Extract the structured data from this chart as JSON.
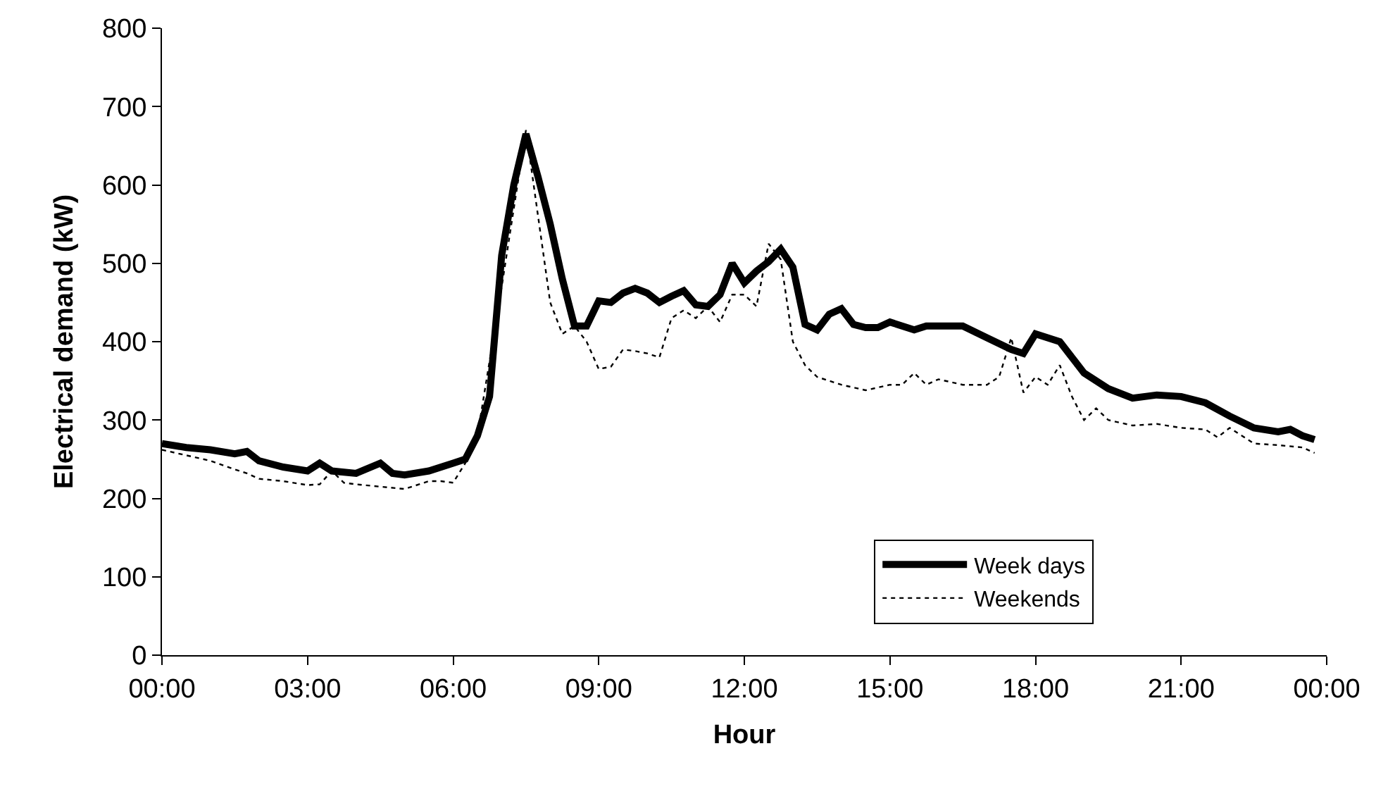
{
  "chart_data": {
    "type": "line",
    "xlabel": "Hour",
    "ylabel": "Electrical demand (kW)",
    "xlim": [
      0,
      24
    ],
    "xticks": [
      {
        "value": 0,
        "label": "00:00"
      },
      {
        "value": 3,
        "label": "03:00"
      },
      {
        "value": 6,
        "label": "06:00"
      },
      {
        "value": 9,
        "label": "09:00"
      },
      {
        "value": 12,
        "label": "12:00"
      },
      {
        "value": 15,
        "label": "15:00"
      },
      {
        "value": 18,
        "label": "18:00"
      },
      {
        "value": 21,
        "label": "21:00"
      },
      {
        "value": 24,
        "label": "00:00"
      }
    ],
    "ylim": [
      0,
      800
    ],
    "yticks": [
      0,
      100,
      200,
      300,
      400,
      500,
      600,
      700,
      800
    ],
    "legend": "bottom right",
    "marker": "none",
    "series": [
      {
        "name": "Week days",
        "color": "#000000",
        "line_style": "solid",
        "x": [
          0,
          0.5,
          1,
          1.5,
          1.75,
          2,
          2.5,
          3,
          3.25,
          3.5,
          4,
          4.5,
          4.75,
          5,
          5.5,
          6,
          6.25,
          6.5,
          6.75,
          7,
          7.25,
          7.5,
          7.75,
          8,
          8.25,
          8.5,
          8.75,
          9,
          9.25,
          9.5,
          9.75,
          10,
          10.25,
          10.5,
          10.75,
          11,
          11.25,
          11.5,
          11.75,
          12,
          12.25,
          12.5,
          12.75,
          13,
          13.25,
          13.5,
          13.75,
          14,
          14.25,
          14.5,
          14.75,
          15,
          15.25,
          15.5,
          15.75,
          16,
          16.5,
          17,
          17.5,
          17.75,
          18,
          18.5,
          19,
          19.5,
          20,
          20.5,
          21,
          21.5,
          22,
          22.5,
          23,
          23.25,
          23.5,
          23.75
        ],
        "values": [
          270,
          265,
          262,
          257,
          260,
          248,
          240,
          235,
          245,
          235,
          232,
          245,
          232,
          230,
          235,
          245,
          250,
          280,
          330,
          510,
          600,
          665,
          610,
          550,
          480,
          420,
          420,
          452,
          450,
          462,
          468,
          462,
          450,
          458,
          465,
          447,
          445,
          460,
          500,
          475,
          490,
          502,
          518,
          495,
          422,
          415,
          435,
          442,
          422,
          418,
          418,
          425,
          420,
          415,
          420,
          420,
          420,
          405,
          390,
          385,
          410,
          400,
          360,
          340,
          328,
          332,
          330,
          322,
          305,
          290,
          285,
          288,
          280,
          275
        ]
      },
      {
        "name": "Weekends",
        "color": "#000000",
        "line_style": "dotted",
        "x": [
          0,
          0.5,
          1,
          1.5,
          1.75,
          2,
          2.5,
          3,
          3.25,
          3.5,
          3.75,
          4,
          4.5,
          5,
          5.5,
          5.75,
          6,
          6.25,
          6.5,
          7,
          7.5,
          7.75,
          8,
          8.25,
          8.5,
          8.75,
          9,
          9.25,
          9.5,
          9.75,
          10,
          10.25,
          10.5,
          10.75,
          11,
          11.25,
          11.5,
          11.75,
          12,
          12.25,
          12.5,
          12.75,
          13,
          13.25,
          13.5,
          14,
          14.5,
          15,
          15.25,
          15.5,
          15.75,
          16,
          16.5,
          17,
          17.25,
          17.5,
          17.75,
          18,
          18.25,
          18.5,
          18.75,
          19,
          19.25,
          19.5,
          20,
          20.5,
          21,
          21.5,
          21.75,
          22,
          22.5,
          23,
          23.5,
          23.75
        ],
        "values": [
          262,
          255,
          248,
          237,
          232,
          225,
          222,
          217,
          218,
          235,
          220,
          218,
          215,
          212,
          222,
          222,
          220,
          245,
          280,
          470,
          670,
          560,
          450,
          410,
          420,
          400,
          365,
          368,
          390,
          388,
          385,
          380,
          430,
          440,
          430,
          445,
          425,
          460,
          460,
          445,
          525,
          505,
          400,
          370,
          355,
          345,
          338,
          345,
          345,
          360,
          345,
          352,
          345,
          345,
          355,
          405,
          335,
          355,
          345,
          370,
          330,
          300,
          315,
          300,
          293,
          295,
          290,
          288,
          278,
          290,
          270,
          268,
          265,
          258
        ]
      }
    ]
  }
}
